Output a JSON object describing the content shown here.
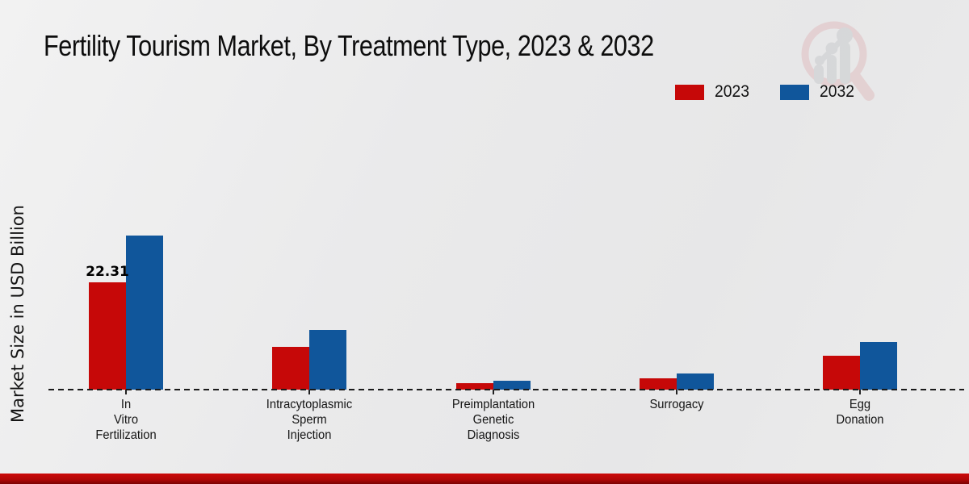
{
  "title": "Fertility Tourism Market, By Treatment Type, 2023 & 2032",
  "ylabel": "Market Size in USD Billion",
  "colors": {
    "series_2023": "#c60808",
    "series_2032": "#10569b",
    "footer_band": "#b30707",
    "background": "#eaeaeb",
    "baseline": "#1a1a1a"
  },
  "legend": {
    "position": "top-right",
    "items": [
      {
        "label": "2023",
        "color": "#c60808"
      },
      {
        "label": "2032",
        "color": "#10569b"
      }
    ]
  },
  "watermark_icon": "magnifier-growth-chart-logo",
  "chart_data": {
    "type": "bar",
    "title": "Fertility Tourism Market, By Treatment Type, 2023 & 2032",
    "xlabel": "",
    "ylabel": "Market Size in USD Billion",
    "ylim": [
      0,
      35
    ],
    "grid": false,
    "baseline_style": "dashed",
    "legend_position": "top-right",
    "categories": [
      "In\nVitro\nFertilization",
      "Intracytoplasmic\nSperm\nInjection",
      "Preimplantation\nGenetic\nDiagnosis",
      "Surrogacy",
      "Egg\nDonation"
    ],
    "series": [
      {
        "name": "2023",
        "color": "#c60808",
        "values": [
          22.31,
          8.85,
          1.35,
          2.3,
          7.15
        ]
      },
      {
        "name": "2032",
        "color": "#10569b",
        "values": [
          32.1,
          12.5,
          1.85,
          3.45,
          10.0
        ]
      }
    ],
    "value_labels": [
      {
        "series": "2023",
        "category_index": 0,
        "text": "22.31"
      }
    ]
  }
}
